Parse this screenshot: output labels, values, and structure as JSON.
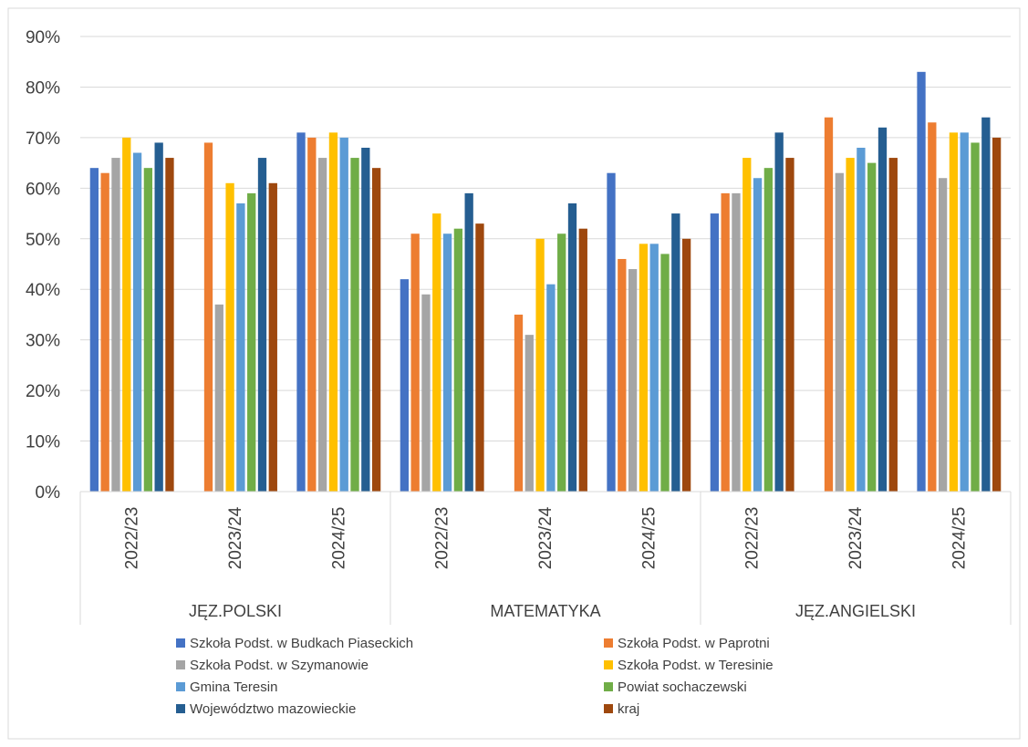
{
  "chart_data": {
    "type": "bar",
    "ylim": [
      0,
      0.9
    ],
    "yticks": [
      "0%",
      "10%",
      "20%",
      "30%",
      "40%",
      "50%",
      "60%",
      "70%",
      "80%",
      "90%"
    ],
    "grid": true,
    "legend_position": "bottom",
    "groups": [
      {
        "label": "JĘZ.POLSKI",
        "categories": [
          "2022/23",
          "2023/24",
          "2024/25"
        ]
      },
      {
        "label": "MATEMATYKA",
        "categories": [
          "2022/23",
          "2023/24",
          "2024/25"
        ]
      },
      {
        "label": "JĘZ.ANGIELSKI",
        "categories": [
          "2022/23",
          "2023/24",
          "2024/25"
        ]
      }
    ],
    "series": [
      {
        "name": "Szkoła Podst. w Budkach Piaseckich",
        "color": "#4472C4",
        "values": [
          0.64,
          null,
          0.71,
          0.42,
          null,
          0.63,
          0.55,
          null,
          0.83
        ]
      },
      {
        "name": "Szkoła Podst. w Paprotni",
        "color": "#ED7D31",
        "values": [
          0.63,
          0.69,
          0.7,
          0.51,
          0.35,
          0.46,
          0.59,
          0.74,
          0.73
        ]
      },
      {
        "name": "Szkoła Podst. w Szymanowie",
        "color": "#A5A5A5",
        "values": [
          0.66,
          0.37,
          0.66,
          0.39,
          0.31,
          0.44,
          0.59,
          0.63,
          0.62
        ]
      },
      {
        "name": "Szkoła Podst. w Teresinie",
        "color": "#FFC000",
        "values": [
          0.7,
          0.61,
          0.71,
          0.55,
          0.5,
          0.49,
          0.66,
          0.66,
          0.71
        ]
      },
      {
        "name": "Gmina Teresin",
        "color": "#5B9BD5",
        "values": [
          0.67,
          0.57,
          0.7,
          0.51,
          0.41,
          0.49,
          0.62,
          0.68,
          0.71
        ]
      },
      {
        "name": "Powiat sochaczewski",
        "color": "#70AD47",
        "values": [
          0.64,
          0.59,
          0.66,
          0.52,
          0.51,
          0.47,
          0.64,
          0.65,
          0.69
        ]
      },
      {
        "name": "Województwo mazowieckie",
        "color": "#255E91",
        "values": [
          0.69,
          0.66,
          0.68,
          0.59,
          0.57,
          0.55,
          0.71,
          0.72,
          0.74
        ]
      },
      {
        "name": "kraj",
        "color": "#9E480E",
        "values": [
          0.66,
          0.61,
          0.64,
          0.53,
          0.52,
          0.5,
          0.66,
          0.66,
          0.7
        ]
      }
    ]
  }
}
